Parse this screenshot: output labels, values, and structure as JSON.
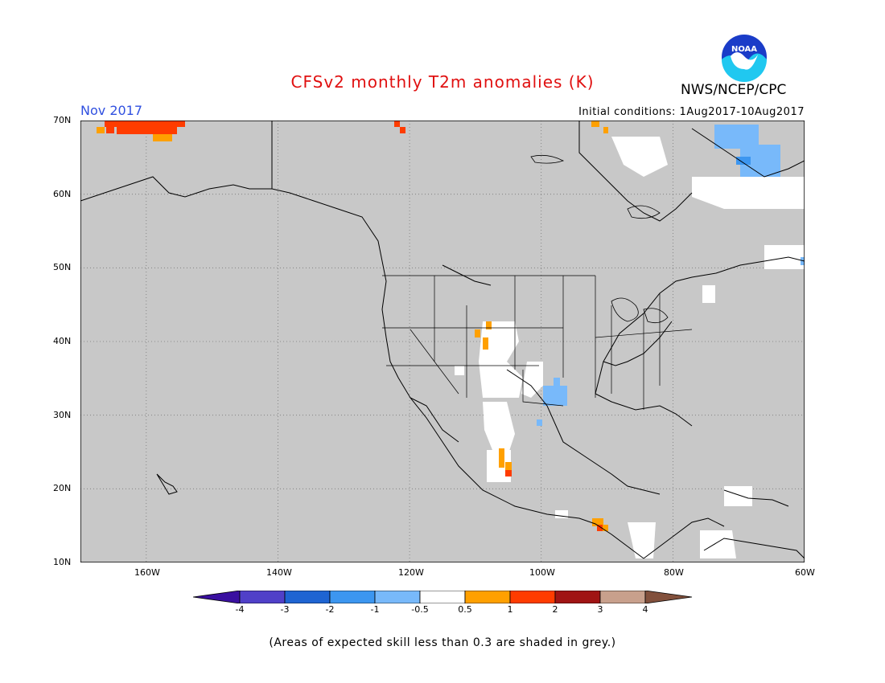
{
  "header": {
    "title": "CFSv2 monthly T2m anomalies (K)",
    "month": "Nov 2017",
    "initial_conditions": "Initial conditions: 1Aug2017-10Aug2017",
    "agency": "NWS/NCEP/CPC",
    "logo_text": "NOAA"
  },
  "map": {
    "lat_labels": [
      "70N",
      "60N",
      "50N",
      "40N",
      "30N",
      "20N",
      "10N"
    ],
    "lon_labels": [
      "160W",
      "140W",
      "120W",
      "100W",
      "80W",
      "60W"
    ],
    "background_color": "#c8c8c8"
  },
  "colorbar": {
    "ticks": [
      "-4",
      "-3",
      "-2",
      "-1",
      "-0.5",
      "0.5",
      "1",
      "2",
      "3",
      "4"
    ],
    "colors": [
      "#3a10a0",
      "#5040c8",
      "#1e64d2",
      "#3c96f0",
      "#78b9fa",
      "#ffffff",
      "#ffa000",
      "#ff3c00",
      "#a01414",
      "#c8a08c",
      "#82503c"
    ]
  },
  "footnote": "(Areas of expected skill less than 0.3 are shaded in grey.)"
}
